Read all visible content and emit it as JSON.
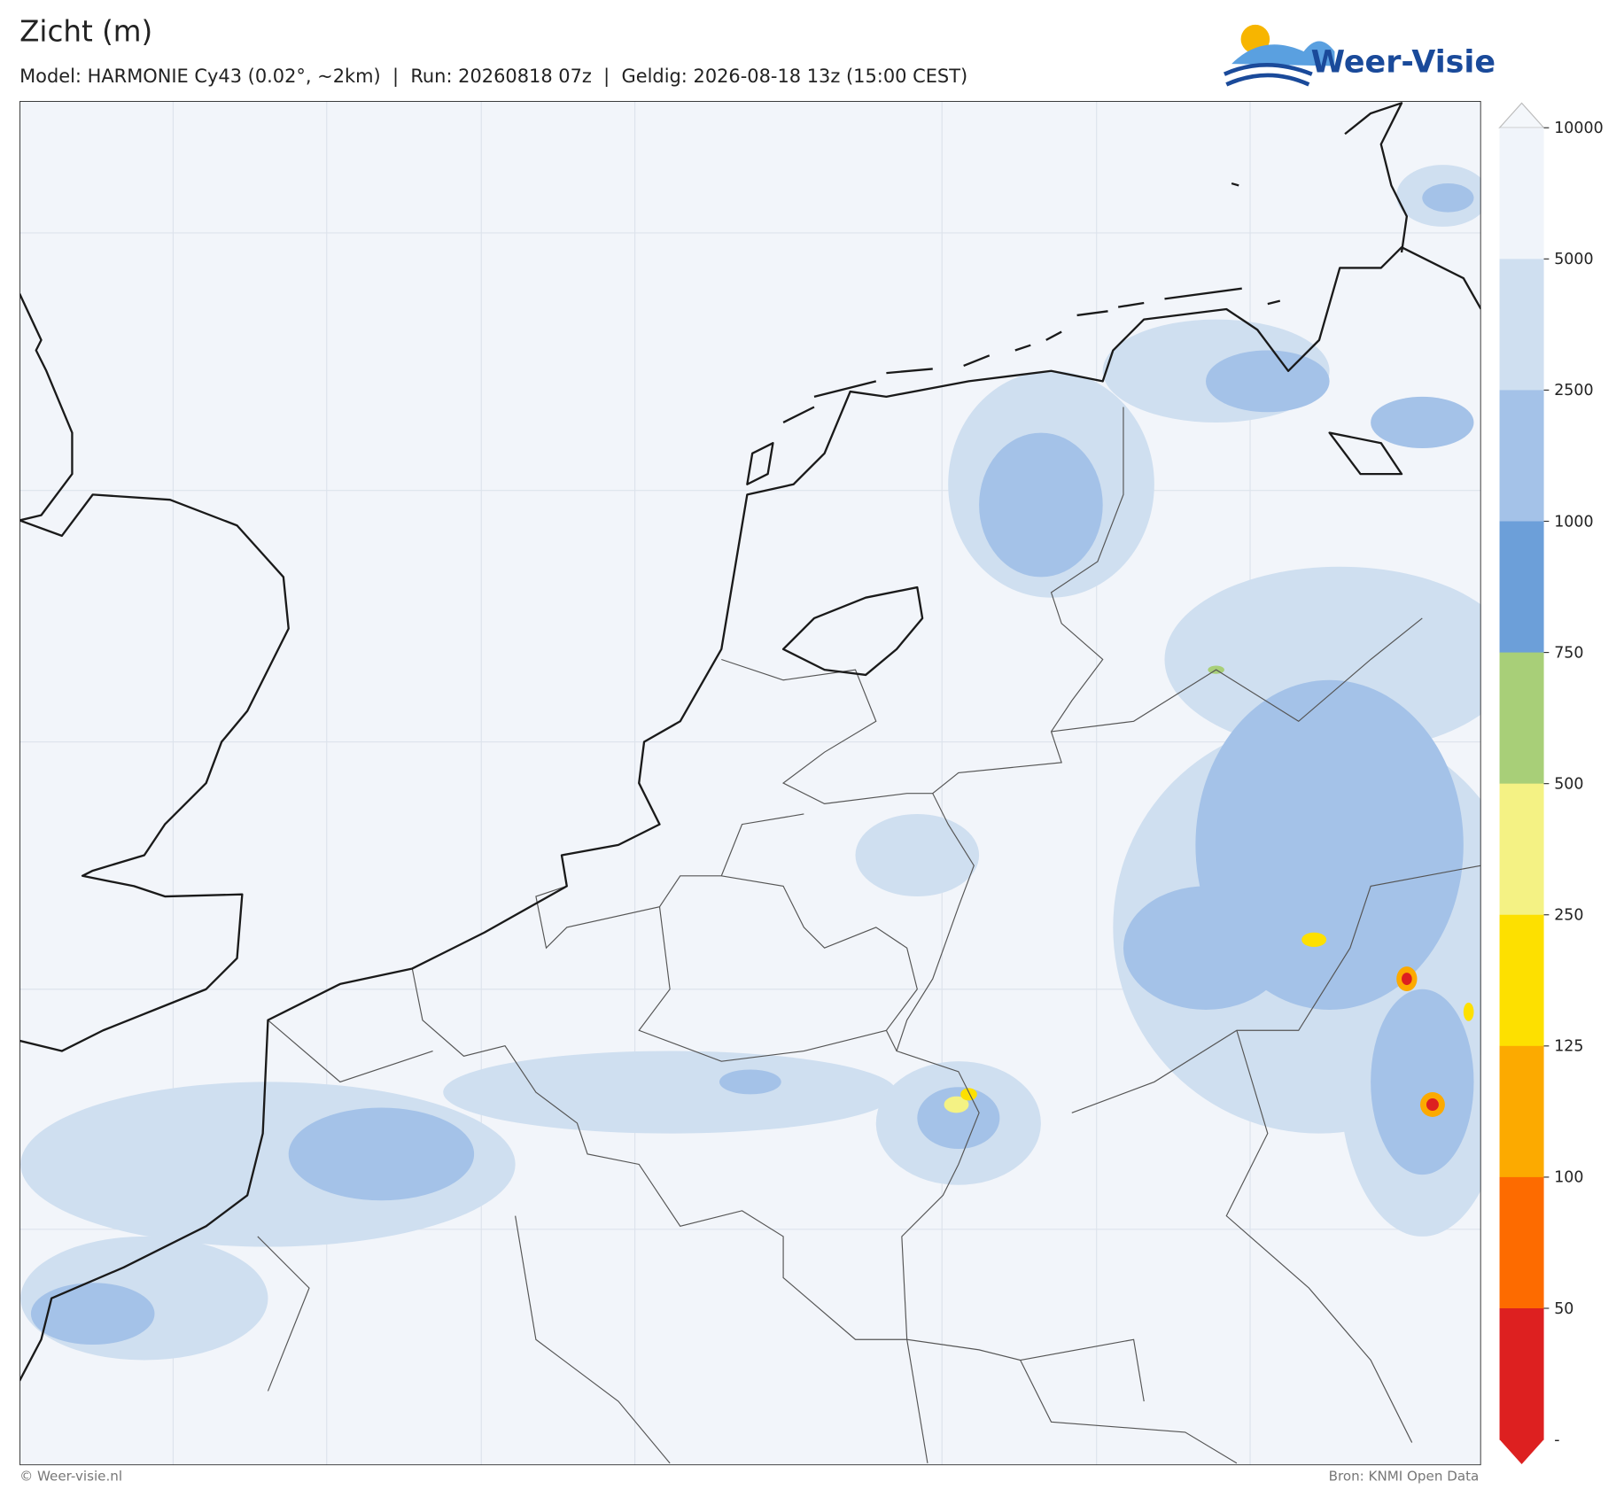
{
  "header": {
    "title": "Zicht (m)",
    "subtitle": "Model: HARMONIE Cy43 (0.02°, ~2km)  |  Run: 20260818 07z  |  Geldig: 2026-08-18 13z (15:00 CEST)"
  },
  "logo": {
    "text": "Weer-Visie"
  },
  "colorbar": {
    "ticks": [
      10000,
      5000,
      2500,
      1000,
      750,
      500,
      250,
      125,
      100,
      50
    ],
    "bottom_label": "-",
    "colors": [
      "#f0f4fa",
      "#cfdff0",
      "#a4c2e8",
      "#6c9fd9",
      "#a8cf78",
      "#f4f284",
      "#fde000",
      "#fcaa00",
      "#fd6b00",
      "#dd2020"
    ],
    "over_color": "#f4f7fb"
  },
  "footer": {
    "left": "© Weer-visie.nl",
    "right": "Bron: KNMI Open Data"
  }
}
